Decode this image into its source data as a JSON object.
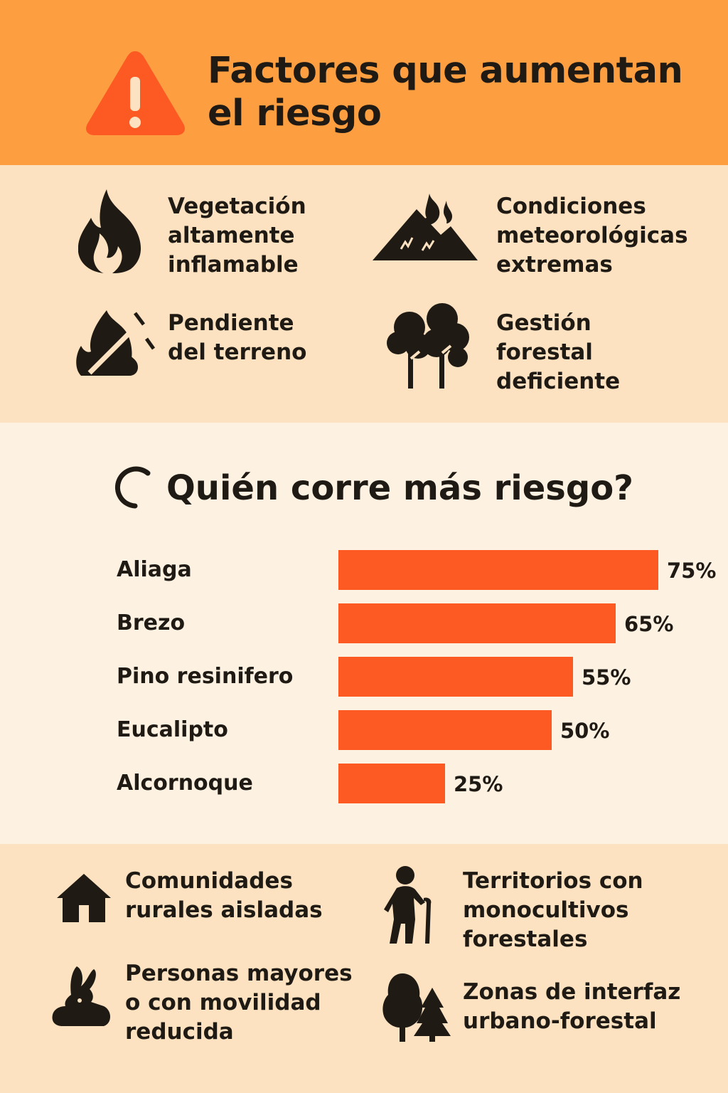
{
  "header": {
    "title": "Factores que aumentan el riesgo",
    "icon": "warning-icon",
    "accent": "#fc5a22"
  },
  "factors": [
    {
      "label": "Vegetación\naltamente\ninflamable",
      "icon": "flame-icon"
    },
    {
      "label": "Condiciones\nmeteorológicas\nextremas",
      "icon": "burning-mountain-icon"
    },
    {
      "label": "Pendiente\ndel terreno",
      "icon": "slope-fire-icon"
    },
    {
      "label": "Gestión\nforestal\ndeficiente",
      "icon": "trees-icon"
    }
  ],
  "who": {
    "title": "Quién corre más riesgo?",
    "icon": "partial-circle-icon"
  },
  "chart_data": {
    "type": "bar",
    "orientation": "horizontal",
    "title": "Quién corre más riesgo?",
    "categories": [
      "Aliaga",
      "Brezo",
      "Pino resinifero",
      "Eucalipto",
      "Alcornoque"
    ],
    "values": [
      75,
      65,
      55,
      50,
      25
    ],
    "value_labels": [
      "75%",
      "65%",
      "55%",
      "50%",
      "25%"
    ],
    "unit": "%",
    "bar_color": "#fc5a22"
  },
  "bottom": [
    {
      "label": "Comunidades\nrurales aisladas",
      "icon": "house-icon"
    },
    {
      "label": "Territorios con\nmonocultivos\nforestales",
      "icon": "elderly-person-icon"
    },
    {
      "label": "Personas mayores\no con movilidad\nreducida",
      "icon": "rabbit-icon"
    },
    {
      "label": "Zonas de interfaz\nurbano-forestal",
      "icon": "forest-icon"
    }
  ]
}
